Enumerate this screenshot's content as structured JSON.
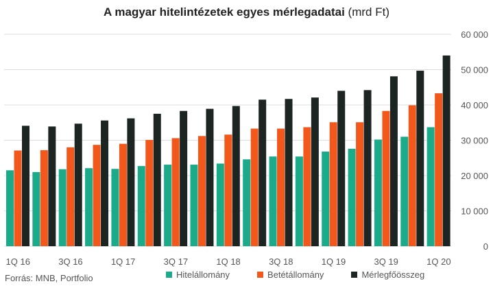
{
  "header": {
    "title": "A magyar hitelintézetek egyes mérlegadatai",
    "unit": "(mrd Ft)"
  },
  "footer": {
    "source": "Forrás: MNB, Portfolio"
  },
  "colors": {
    "Hitelállomány": "#1bab8a",
    "Betétállomány": "#f2581c",
    "Mérlegfőösszeg": "#1c2521",
    "grid": "#dcdcdc",
    "text": "#555555"
  },
  "chart_data": {
    "type": "bar",
    "title": "A magyar hitelintézetek egyes mérlegadatai (mrd Ft)",
    "xlabel": "",
    "ylabel": "",
    "ylim": [
      0,
      60000
    ],
    "yticks": [
      0,
      10000,
      20000,
      30000,
      40000,
      50000,
      60000
    ],
    "ytick_labels": [
      "0",
      "10 000",
      "20 000",
      "30 000",
      "40 000",
      "50 000",
      "60 000"
    ],
    "y_axis_side": "right",
    "grid": true,
    "legend_position": "bottom",
    "categories": [
      "1Q 16",
      "2Q 16",
      "3Q 16",
      "4Q 16",
      "1Q 17",
      "2Q 17",
      "3Q 17",
      "4Q 17",
      "1Q 18",
      "2Q 18",
      "3Q 18",
      "4Q 18",
      "1Q 19",
      "2Q 19",
      "3Q 19",
      "4Q 19",
      "1Q 20"
    ],
    "xtick_labels": [
      "1Q 16",
      "",
      "3Q 16",
      "",
      "1Q 17",
      "",
      "3Q 17",
      "",
      "1Q 18",
      "",
      "3Q 18",
      "",
      "1Q 19",
      "",
      "3Q 19",
      "",
      "1Q 20"
    ],
    "series": [
      {
        "name": "Hitelállomány",
        "values": [
          21500,
          21000,
          21800,
          22100,
          21900,
          22700,
          23100,
          23100,
          23400,
          24600,
          25400,
          25400,
          26800,
          27600,
          30200,
          31000,
          33700
        ]
      },
      {
        "name": "Betétállomány",
        "values": [
          27100,
          27200,
          28000,
          28700,
          29000,
          30100,
          30600,
          31200,
          31600,
          33300,
          33300,
          33700,
          35100,
          35100,
          38300,
          39900,
          43300
        ]
      },
      {
        "name": "Mérlegfőösszeg",
        "values": [
          34100,
          33900,
          34700,
          35600,
          36200,
          37500,
          38300,
          38900,
          39700,
          41500,
          41700,
          42100,
          44000,
          44200,
          48100,
          49700,
          54000
        ]
      }
    ]
  }
}
